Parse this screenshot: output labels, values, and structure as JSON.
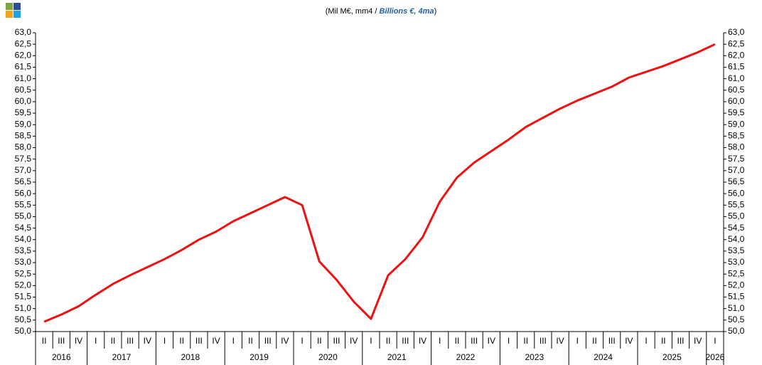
{
  "chart_data": {
    "type": "line",
    "subtitle": "(Mil M€, mm4 / ",
    "subtitle_en": "Billions €, 4ma",
    "subtitle_end": ")",
    "categories": [
      "II",
      "III",
      "IV",
      "I",
      "II",
      "III",
      "IV",
      "I",
      "II",
      "III",
      "IV",
      "I",
      "II",
      "III",
      "IV",
      "I",
      "II",
      "III",
      "IV",
      "I",
      "II",
      "III",
      "IV",
      "I",
      "II",
      "III",
      "IV",
      "I",
      "II",
      "III",
      "IV",
      "I",
      "II",
      "III",
      "IV",
      "I",
      "II",
      "III",
      "IV",
      "I"
    ],
    "years": [
      "2016",
      "2017",
      "2018",
      "2019",
      "2020",
      "2021",
      "2022",
      "2023",
      "2024",
      "2025",
      "2026"
    ],
    "series": [
      {
        "color": "#ee1111",
        "values": [
          50.43,
          50.74,
          51.1,
          51.6,
          52.07,
          52.45,
          52.8,
          53.15,
          53.55,
          54.0,
          54.35,
          54.8,
          55.15,
          55.5,
          55.85,
          55.5,
          53.05,
          52.25,
          51.3,
          50.55,
          52.45,
          53.15,
          54.1,
          55.65,
          56.7,
          57.35,
          57.85,
          58.35,
          58.9,
          59.3,
          59.7,
          60.05,
          60.35,
          60.65,
          61.05,
          61.3,
          61.55,
          61.85,
          62.15,
          62.5
        ]
      }
    ],
    "ylim": [
      50,
      63
    ],
    "yticks": [
      {
        "value": 50,
        "label": "50,0"
      },
      {
        "value": 50.5,
        "label": "50,5"
      },
      {
        "value": 51,
        "label": "51,0"
      },
      {
        "value": 51.5,
        "label": "51,5"
      },
      {
        "value": 52,
        "label": "52,0"
      },
      {
        "value": 52.5,
        "label": "52,5"
      },
      {
        "value": 53,
        "label": "53,0"
      },
      {
        "value": 53.5,
        "label": "53,5"
      },
      {
        "value": 54,
        "label": "54,0"
      },
      {
        "value": 54.5,
        "label": "54,5"
      },
      {
        "value": 55,
        "label": "55,0"
      },
      {
        "value": 55.5,
        "label": "55,5"
      },
      {
        "value": 56,
        "label": "56,0"
      },
      {
        "value": 56.5,
        "label": "56,5"
      },
      {
        "value": 57,
        "label": "57,0"
      },
      {
        "value": 57.5,
        "label": "57,5"
      },
      {
        "value": 58,
        "label": "58,0"
      },
      {
        "value": 58.5,
        "label": "58,5"
      },
      {
        "value": 59,
        "label": "59,0"
      },
      {
        "value": 59.5,
        "label": "59,5"
      },
      {
        "value": 60,
        "label": "60,0"
      },
      {
        "value": 60.5,
        "label": "60,5"
      },
      {
        "value": 61,
        "label": "61,0"
      },
      {
        "value": 61.5,
        "label": "61,5"
      },
      {
        "value": 62,
        "label": "62,0"
      },
      {
        "value": 62.5,
        "label": "62,5"
      },
      {
        "value": 63,
        "label": "63,0"
      }
    ]
  }
}
